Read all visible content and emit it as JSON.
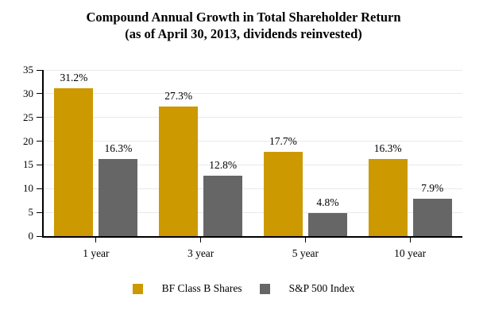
{
  "page": {
    "background": "#FFFFFF"
  },
  "chart_data": {
    "type": "bar",
    "title": "Compound Annual Growth in Total Shareholder Return",
    "subtitle": "(as of April 30, 2013, dividends reinvested)",
    "categories": [
      "1 year",
      "3 year",
      "5 year",
      "10 year"
    ],
    "series": [
      {
        "name": "BF Class B Shares",
        "color": "#CC9900",
        "values": [
          31.2,
          27.3,
          17.7,
          16.3
        ],
        "value_labels": [
          "31.2%",
          "27.3%",
          "17.7%",
          "16.3%"
        ]
      },
      {
        "name": "S&P 500 Index",
        "color": "#666666",
        "values": [
          16.3,
          12.8,
          4.8,
          7.9
        ],
        "value_labels": [
          "16.3%",
          "12.8%",
          "4.8%",
          "7.9%"
        ]
      }
    ],
    "ylim": [
      0,
      35
    ],
    "yticks": [
      0,
      5,
      10,
      15,
      20,
      25,
      30,
      35
    ],
    "grid": true,
    "legend_position": "bottom",
    "colors": {
      "axis": "#000000",
      "gridline": "#E9E9E9",
      "text": "#000000"
    }
  }
}
